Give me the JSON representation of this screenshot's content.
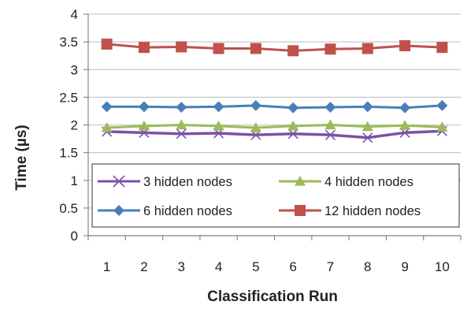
{
  "chart_data": {
    "type": "line",
    "title": "",
    "xlabel": "Classification Run",
    "ylabel": "Time (µs)",
    "x": [
      1,
      2,
      3,
      4,
      5,
      6,
      7,
      8,
      9,
      10
    ],
    "x_tick_labels": [
      "1",
      "2",
      "3",
      "4",
      "5",
      "6",
      "7",
      "8",
      "9",
      "10"
    ],
    "ylim": [
      0,
      4
    ],
    "y_ticks": [
      0,
      0.5,
      1,
      1.5,
      2,
      2.5,
      3,
      3.5,
      4
    ],
    "y_tick_labels": [
      "0",
      "0.5",
      "1",
      "1.5",
      "2",
      "2.5",
      "3",
      "3.5",
      "4"
    ],
    "grid": true,
    "legend_position": "bottom-inside",
    "series": [
      {
        "name": "3 hidden nodes",
        "marker": "x",
        "color": "#7D52A6",
        "values": [
          1.88,
          1.86,
          1.84,
          1.85,
          1.82,
          1.84,
          1.82,
          1.77,
          1.86,
          1.89
        ]
      },
      {
        "name": "4 hidden nodes",
        "marker": "triangle",
        "color": "#9BBB59",
        "values": [
          1.95,
          1.98,
          2.0,
          1.98,
          1.95,
          1.98,
          2.0,
          1.97,
          1.99,
          1.96
        ]
      },
      {
        "name": "6 hidden nodes",
        "marker": "diamond",
        "color": "#4A7EBB",
        "values": [
          2.33,
          2.33,
          2.32,
          2.33,
          2.35,
          2.31,
          2.32,
          2.33,
          2.31,
          2.35
        ]
      },
      {
        "name": "12 hidden nodes",
        "marker": "square",
        "color": "#C0504D",
        "values": [
          3.46,
          3.4,
          3.41,
          3.38,
          3.38,
          3.34,
          3.37,
          3.38,
          3.43,
          3.4
        ]
      }
    ]
  }
}
